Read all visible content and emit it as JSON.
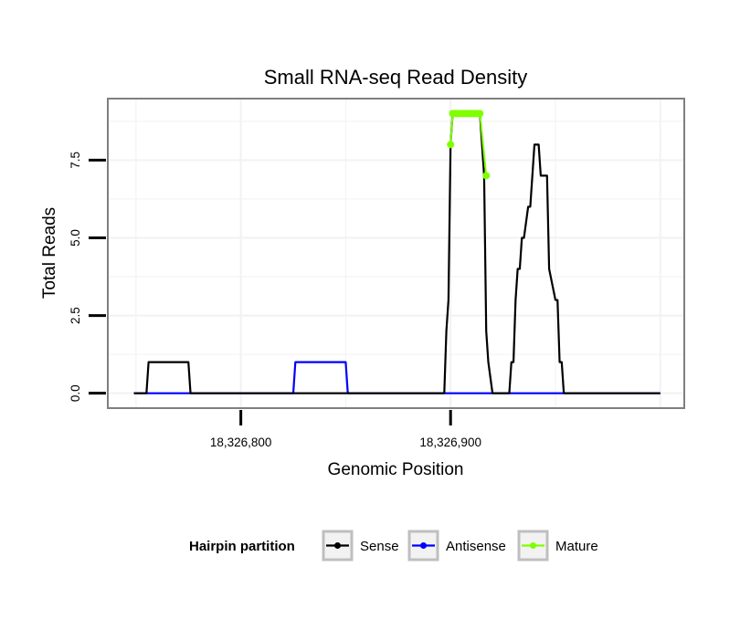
{
  "chart_data": {
    "type": "line",
    "title": "Small RNA-seq Read Density",
    "xlabel": "Genomic Position",
    "ylabel": "Total Reads",
    "xlim": [
      18326737,
      18327011
    ],
    "ylim": [
      -0.45,
      9.45
    ],
    "x_ticks": [
      18326800,
      18326900
    ],
    "x_tick_labels": [
      "18,326,800",
      "18,326,900"
    ],
    "y_ticks": [
      0,
      2.5,
      5,
      7.5
    ],
    "y_tick_labels": [
      "0.0",
      "2.5",
      "5.0",
      "7.5"
    ],
    "grid": true,
    "legend": {
      "title": "Hairpin partition",
      "position": "bottom",
      "entries": [
        {
          "name": "Sense",
          "color": "#000000"
        },
        {
          "name": "Antisense",
          "color": "#0000ff"
        },
        {
          "name": "Mature",
          "color": "#7fff00"
        }
      ]
    },
    "series": [
      {
        "name": "Sense",
        "color": "#000000",
        "x": [
          18326749,
          18326755,
          18326756,
          18326775,
          18326776,
          18326897,
          18326898,
          18326899,
          18326900,
          18326901,
          18326902,
          18326914,
          18326915,
          18326916,
          18326917,
          18326918,
          18326920,
          18326921,
          18326928,
          18326929,
          18326930,
          18326931,
          18326932,
          18326933,
          18326934,
          18326935,
          18326937,
          18326938,
          18326939,
          18326940,
          18326942,
          18326943,
          18326946,
          18326947,
          18326950,
          18326951,
          18326952,
          18326953,
          18326954,
          18326956,
          18326957,
          18326960,
          18326961,
          18326962,
          18326964,
          18326965,
          18326969,
          18326970,
          18327000
        ],
        "y": [
          0,
          0,
          1,
          1,
          0,
          0,
          2,
          3,
          8,
          9,
          9,
          9,
          8,
          7,
          2,
          1,
          0,
          0,
          0,
          1,
          1,
          3,
          4,
          4,
          5,
          5,
          6,
          6,
          7,
          8,
          8,
          7,
          7,
          4,
          3,
          3,
          1,
          1,
          0,
          0,
          0,
          0,
          0,
          0,
          0,
          0,
          0,
          0,
          0
        ]
      },
      {
        "name": "Antisense",
        "color": "#0000ff",
        "x": [
          18326749,
          18326825,
          18326826,
          18326850,
          18326851,
          18327000
        ],
        "y": [
          0,
          0,
          1,
          1,
          0,
          0
        ]
      },
      {
        "name": "Mature",
        "color": "#7fff00",
        "x": [
          18326900,
          18326901,
          18326902,
          18326903,
          18326904,
          18326905,
          18326906,
          18326907,
          18326908,
          18326909,
          18326910,
          18326911,
          18326912,
          18326913,
          18326914,
          18326917
        ],
        "y": [
          8,
          9,
          9,
          9,
          9,
          9,
          9,
          9,
          9,
          9,
          9,
          9,
          9,
          9,
          9,
          7
        ]
      }
    ]
  }
}
